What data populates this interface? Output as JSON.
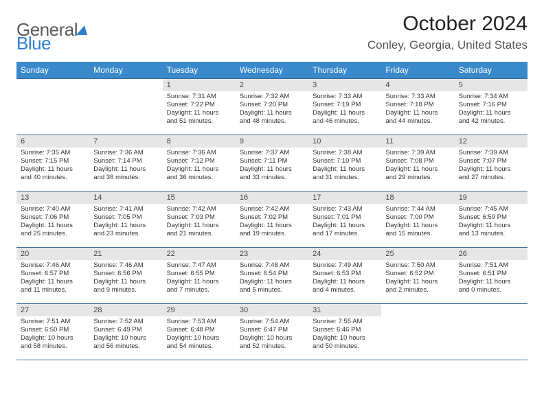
{
  "logo": {
    "part1": "General",
    "part2": "Blue"
  },
  "title": "October 2024",
  "location": "Conley, Georgia, United States",
  "colors": {
    "header_bg": "#3a8acb",
    "header_text": "#ffffff",
    "daynum_bg": "#e6e6e6",
    "border": "#3a6a9a",
    "logo_blue": "#2f7fcf"
  },
  "weekdays": [
    "Sunday",
    "Monday",
    "Tuesday",
    "Wednesday",
    "Thursday",
    "Friday",
    "Saturday"
  ],
  "weeks": [
    [
      {
        "n": "",
        "sunrise": "",
        "sunset": "",
        "daylight": "",
        "empty": true
      },
      {
        "n": "",
        "sunrise": "",
        "sunset": "",
        "daylight": "",
        "empty": true
      },
      {
        "n": "1",
        "sunrise": "Sunrise: 7:31 AM",
        "sunset": "Sunset: 7:22 PM",
        "daylight": "Daylight: 11 hours and 51 minutes."
      },
      {
        "n": "2",
        "sunrise": "Sunrise: 7:32 AM",
        "sunset": "Sunset: 7:20 PM",
        "daylight": "Daylight: 11 hours and 48 minutes."
      },
      {
        "n": "3",
        "sunrise": "Sunrise: 7:33 AM",
        "sunset": "Sunset: 7:19 PM",
        "daylight": "Daylight: 11 hours and 46 minutes."
      },
      {
        "n": "4",
        "sunrise": "Sunrise: 7:33 AM",
        "sunset": "Sunset: 7:18 PM",
        "daylight": "Daylight: 11 hours and 44 minutes."
      },
      {
        "n": "5",
        "sunrise": "Sunrise: 7:34 AM",
        "sunset": "Sunset: 7:16 PM",
        "daylight": "Daylight: 11 hours and 42 minutes."
      }
    ],
    [
      {
        "n": "6",
        "sunrise": "Sunrise: 7:35 AM",
        "sunset": "Sunset: 7:15 PM",
        "daylight": "Daylight: 11 hours and 40 minutes."
      },
      {
        "n": "7",
        "sunrise": "Sunrise: 7:36 AM",
        "sunset": "Sunset: 7:14 PM",
        "daylight": "Daylight: 11 hours and 38 minutes."
      },
      {
        "n": "8",
        "sunrise": "Sunrise: 7:36 AM",
        "sunset": "Sunset: 7:12 PM",
        "daylight": "Daylight: 11 hours and 36 minutes."
      },
      {
        "n": "9",
        "sunrise": "Sunrise: 7:37 AM",
        "sunset": "Sunset: 7:11 PM",
        "daylight": "Daylight: 11 hours and 33 minutes."
      },
      {
        "n": "10",
        "sunrise": "Sunrise: 7:38 AM",
        "sunset": "Sunset: 7:10 PM",
        "daylight": "Daylight: 11 hours and 31 minutes."
      },
      {
        "n": "11",
        "sunrise": "Sunrise: 7:39 AM",
        "sunset": "Sunset: 7:08 PM",
        "daylight": "Daylight: 11 hours and 29 minutes."
      },
      {
        "n": "12",
        "sunrise": "Sunrise: 7:39 AM",
        "sunset": "Sunset: 7:07 PM",
        "daylight": "Daylight: 11 hours and 27 minutes."
      }
    ],
    [
      {
        "n": "13",
        "sunrise": "Sunrise: 7:40 AM",
        "sunset": "Sunset: 7:06 PM",
        "daylight": "Daylight: 11 hours and 25 minutes."
      },
      {
        "n": "14",
        "sunrise": "Sunrise: 7:41 AM",
        "sunset": "Sunset: 7:05 PM",
        "daylight": "Daylight: 11 hours and 23 minutes."
      },
      {
        "n": "15",
        "sunrise": "Sunrise: 7:42 AM",
        "sunset": "Sunset: 7:03 PM",
        "daylight": "Daylight: 11 hours and 21 minutes."
      },
      {
        "n": "16",
        "sunrise": "Sunrise: 7:42 AM",
        "sunset": "Sunset: 7:02 PM",
        "daylight": "Daylight: 11 hours and 19 minutes."
      },
      {
        "n": "17",
        "sunrise": "Sunrise: 7:43 AM",
        "sunset": "Sunset: 7:01 PM",
        "daylight": "Daylight: 11 hours and 17 minutes."
      },
      {
        "n": "18",
        "sunrise": "Sunrise: 7:44 AM",
        "sunset": "Sunset: 7:00 PM",
        "daylight": "Daylight: 11 hours and 15 minutes."
      },
      {
        "n": "19",
        "sunrise": "Sunrise: 7:45 AM",
        "sunset": "Sunset: 6:59 PM",
        "daylight": "Daylight: 11 hours and 13 minutes."
      }
    ],
    [
      {
        "n": "20",
        "sunrise": "Sunrise: 7:46 AM",
        "sunset": "Sunset: 6:57 PM",
        "daylight": "Daylight: 11 hours and 11 minutes."
      },
      {
        "n": "21",
        "sunrise": "Sunrise: 7:46 AM",
        "sunset": "Sunset: 6:56 PM",
        "daylight": "Daylight: 11 hours and 9 minutes."
      },
      {
        "n": "22",
        "sunrise": "Sunrise: 7:47 AM",
        "sunset": "Sunset: 6:55 PM",
        "daylight": "Daylight: 11 hours and 7 minutes."
      },
      {
        "n": "23",
        "sunrise": "Sunrise: 7:48 AM",
        "sunset": "Sunset: 6:54 PM",
        "daylight": "Daylight: 11 hours and 5 minutes."
      },
      {
        "n": "24",
        "sunrise": "Sunrise: 7:49 AM",
        "sunset": "Sunset: 6:53 PM",
        "daylight": "Daylight: 11 hours and 4 minutes."
      },
      {
        "n": "25",
        "sunrise": "Sunrise: 7:50 AM",
        "sunset": "Sunset: 6:52 PM",
        "daylight": "Daylight: 11 hours and 2 minutes."
      },
      {
        "n": "26",
        "sunrise": "Sunrise: 7:51 AM",
        "sunset": "Sunset: 6:51 PM",
        "daylight": "Daylight: 11 hours and 0 minutes."
      }
    ],
    [
      {
        "n": "27",
        "sunrise": "Sunrise: 7:51 AM",
        "sunset": "Sunset: 6:50 PM",
        "daylight": "Daylight: 10 hours and 58 minutes."
      },
      {
        "n": "28",
        "sunrise": "Sunrise: 7:52 AM",
        "sunset": "Sunset: 6:49 PM",
        "daylight": "Daylight: 10 hours and 56 minutes."
      },
      {
        "n": "29",
        "sunrise": "Sunrise: 7:53 AM",
        "sunset": "Sunset: 6:48 PM",
        "daylight": "Daylight: 10 hours and 54 minutes."
      },
      {
        "n": "30",
        "sunrise": "Sunrise: 7:54 AM",
        "sunset": "Sunset: 6:47 PM",
        "daylight": "Daylight: 10 hours and 52 minutes."
      },
      {
        "n": "31",
        "sunrise": "Sunrise: 7:55 AM",
        "sunset": "Sunset: 6:46 PM",
        "daylight": "Daylight: 10 hours and 50 minutes."
      },
      {
        "n": "",
        "sunrise": "",
        "sunset": "",
        "daylight": "",
        "empty": true
      },
      {
        "n": "",
        "sunrise": "",
        "sunset": "",
        "daylight": "",
        "empty": true
      }
    ]
  ]
}
